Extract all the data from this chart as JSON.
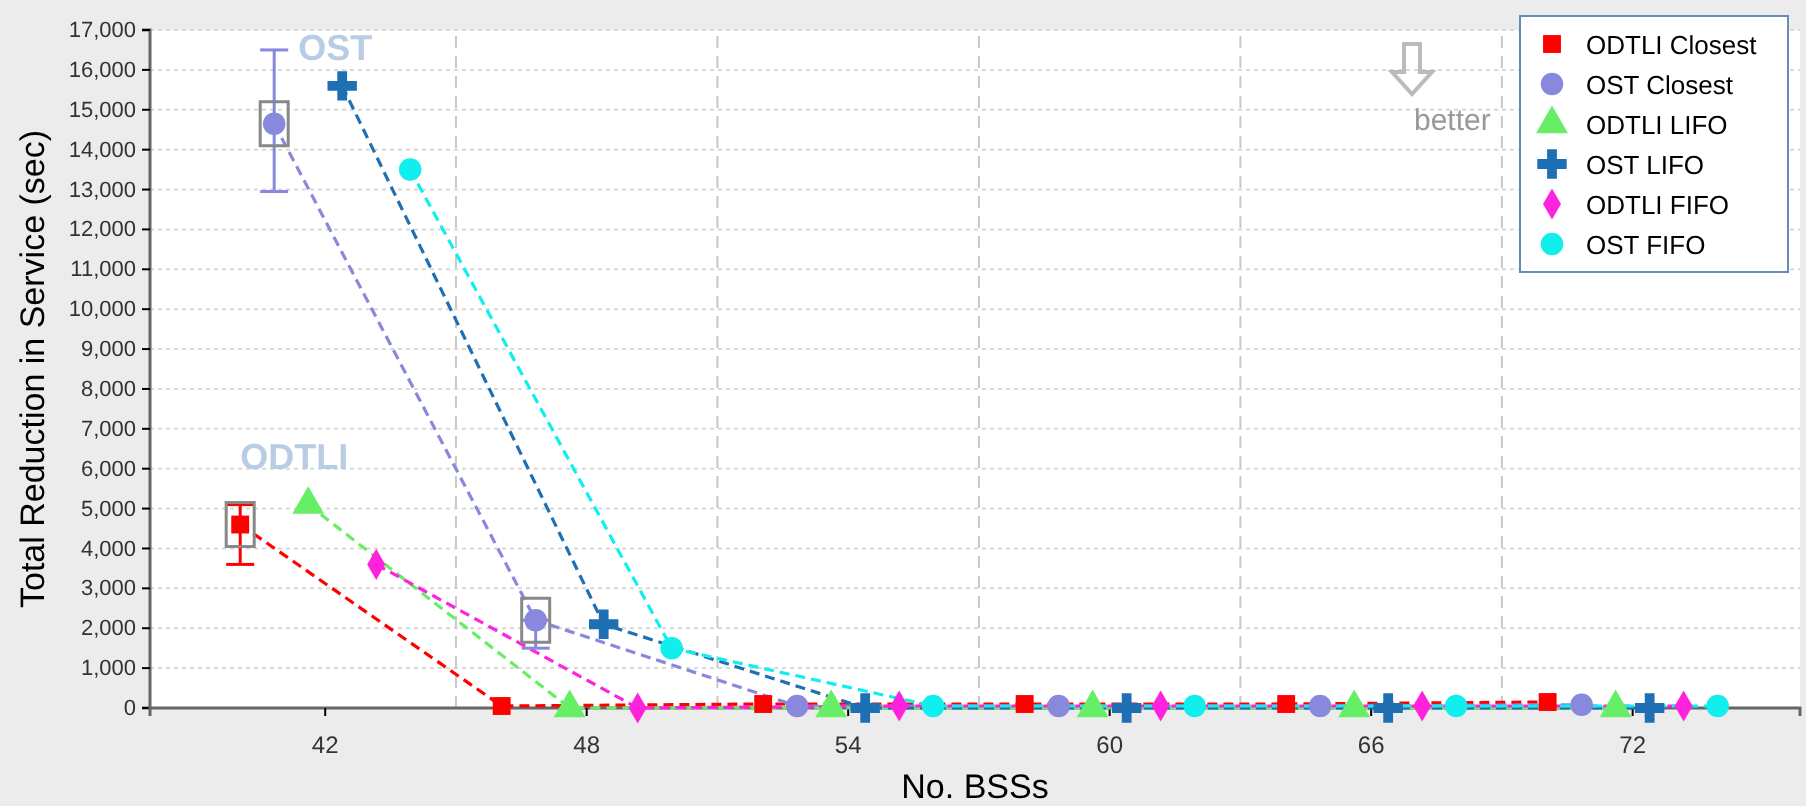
{
  "chart_data": {
    "type": "line",
    "xlabel": "No. BSSs",
    "ylabel": "Total Reduction in Service (sec)",
    "categories": [
      "42",
      "48",
      "54",
      "60",
      "66",
      "72"
    ],
    "ylim": [
      0,
      17000
    ],
    "yticks": [
      0,
      {
        "value": 1000,
        "label": "1,000"
      },
      {
        "value": 2000,
        "label": "2,000"
      },
      {
        "value": 3000,
        "label": "3,000"
      },
      {
        "value": 4000,
        "label": "4,000"
      },
      {
        "value": 5000,
        "label": "5,000"
      },
      {
        "value": 6000,
        "label": "6,000"
      },
      {
        "value": 7000,
        "label": "7,000"
      },
      {
        "value": 8000,
        "label": "8,000"
      },
      {
        "value": 9000,
        "label": "9,000"
      },
      {
        "value": 10000,
        "label": "10,000"
      },
      {
        "value": 11000,
        "label": "11,000"
      },
      {
        "value": 12000,
        "label": "12,000"
      },
      {
        "value": 13000,
        "label": "13,000"
      },
      {
        "value": 14000,
        "label": "14,000"
      },
      {
        "value": 15000,
        "label": "15,000"
      },
      {
        "value": 16000,
        "label": "16,000"
      },
      {
        "value": 17000,
        "label": "17,000"
      }
    ],
    "grid": true,
    "legend": "top right",
    "line_style": "dashed",
    "annotations": [
      "OST",
      "ODTLI",
      "better"
    ],
    "series": [
      {
        "name": "ODTLI Closest",
        "color": "#ff0000",
        "marker": "square",
        "values": [
          4600,
          50,
          100,
          100,
          100,
          150
        ],
        "errors": [
          [
            3600,
            5100
          ],
          null,
          null,
          null,
          null,
          null
        ]
      },
      {
        "name": "OST Closest",
        "color": "#8888dd",
        "marker": "circle",
        "values": [
          14650,
          2200,
          50,
          50,
          50,
          80
        ],
        "errors": [
          [
            12950,
            16500
          ],
          [
            1500,
            2200
          ],
          null,
          null,
          null,
          null
        ]
      },
      {
        "name": "ODTLI LIFO",
        "color": "#66ee66",
        "marker": "triangle",
        "values": [
          5100,
          0,
          0,
          0,
          0,
          0
        ]
      },
      {
        "name": "OST LIFO",
        "color": "#1f6fb4",
        "marker": "cross",
        "values": [
          15600,
          2100,
          0,
          0,
          0,
          0
        ]
      },
      {
        "name": "ODTLI FIFO",
        "color": "#ff22dd",
        "marker": "diamond",
        "values": [
          3600,
          0,
          50,
          50,
          50,
          50
        ]
      },
      {
        "name": "OST FIFO",
        "color": "#11eeee",
        "marker": "circle",
        "values": [
          13500,
          1500,
          50,
          50,
          50,
          50
        ]
      }
    ]
  }
}
